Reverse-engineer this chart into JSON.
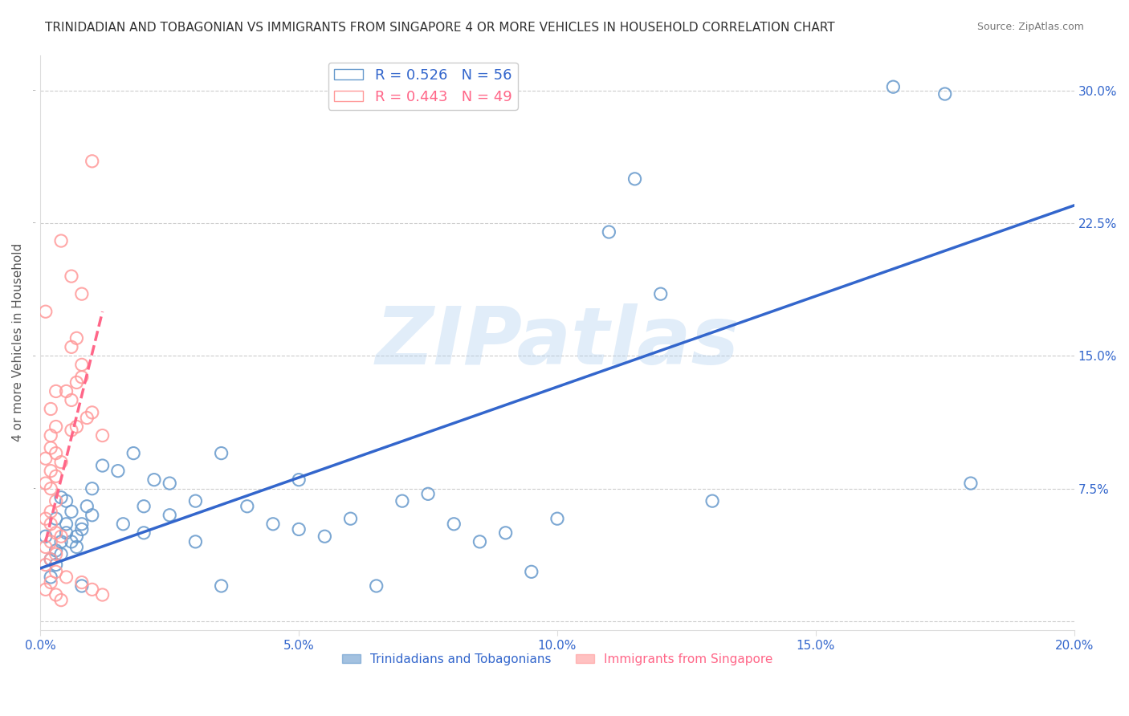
{
  "title": "TRINIDADIAN AND TOBAGONIAN VS IMMIGRANTS FROM SINGAPORE 4 OR MORE VEHICLES IN HOUSEHOLD CORRELATION CHART",
  "source": "Source: ZipAtlas.com",
  "ylabel": "4 or more Vehicles in Household",
  "xlabel": "",
  "xlim": [
    0.0,
    0.2
  ],
  "ylim": [
    -0.005,
    0.32
  ],
  "xticks": [
    0.0,
    0.05,
    0.1,
    0.15,
    0.2
  ],
  "yticks": [
    0.0,
    0.075,
    0.15,
    0.225,
    0.3
  ],
  "ytick_labels": [
    "",
    "7.5%",
    "15.0%",
    "22.5%",
    "30.0%"
  ],
  "xtick_labels": [
    "0.0%",
    "5.0%",
    "10.0%",
    "15.0%",
    "20.0%"
  ],
  "blue_R": 0.526,
  "blue_N": 56,
  "pink_R": 0.443,
  "pink_N": 49,
  "blue_color": "#6699CC",
  "pink_color": "#FF9999",
  "blue_label": "Trinidadians and Tobagonians",
  "pink_label": "Immigrants from Singapore",
  "blue_scatter": [
    [
      0.005,
      0.055
    ],
    [
      0.007,
      0.048
    ],
    [
      0.008,
      0.052
    ],
    [
      0.01,
      0.06
    ],
    [
      0.004,
      0.045
    ],
    [
      0.003,
      0.04
    ],
    [
      0.006,
      0.062
    ],
    [
      0.002,
      0.035
    ],
    [
      0.005,
      0.068
    ],
    [
      0.007,
      0.042
    ],
    [
      0.003,
      0.058
    ],
    [
      0.009,
      0.065
    ],
    [
      0.004,
      0.038
    ],
    [
      0.008,
      0.055
    ],
    [
      0.006,
      0.045
    ],
    [
      0.005,
      0.05
    ],
    [
      0.003,
      0.032
    ],
    [
      0.002,
      0.025
    ],
    [
      0.004,
      0.07
    ],
    [
      0.001,
      0.048
    ],
    [
      0.01,
      0.075
    ],
    [
      0.015,
      0.085
    ],
    [
      0.02,
      0.065
    ],
    [
      0.025,
      0.078
    ],
    [
      0.03,
      0.068
    ],
    [
      0.035,
      0.095
    ],
    [
      0.018,
      0.095
    ],
    [
      0.022,
      0.08
    ],
    [
      0.012,
      0.088
    ],
    [
      0.008,
      0.02
    ],
    [
      0.016,
      0.055
    ],
    [
      0.02,
      0.05
    ],
    [
      0.025,
      0.06
    ],
    [
      0.03,
      0.045
    ],
    [
      0.035,
      0.02
    ],
    [
      0.04,
      0.065
    ],
    [
      0.045,
      0.055
    ],
    [
      0.05,
      0.08
    ],
    [
      0.05,
      0.052
    ],
    [
      0.055,
      0.048
    ],
    [
      0.06,
      0.058
    ],
    [
      0.065,
      0.02
    ],
    [
      0.07,
      0.068
    ],
    [
      0.075,
      0.072
    ],
    [
      0.08,
      0.055
    ],
    [
      0.085,
      0.045
    ],
    [
      0.09,
      0.05
    ],
    [
      0.095,
      0.028
    ],
    [
      0.1,
      0.058
    ],
    [
      0.11,
      0.22
    ],
    [
      0.115,
      0.25
    ],
    [
      0.12,
      0.185
    ],
    [
      0.13,
      0.068
    ],
    [
      0.18,
      0.078
    ],
    [
      0.165,
      0.302
    ],
    [
      0.175,
      0.298
    ]
  ],
  "pink_scatter": [
    [
      0.001,
      0.175
    ],
    [
      0.002,
      0.12
    ],
    [
      0.003,
      0.13
    ],
    [
      0.002,
      0.105
    ],
    [
      0.003,
      0.11
    ],
    [
      0.002,
      0.098
    ],
    [
      0.001,
      0.092
    ],
    [
      0.002,
      0.085
    ],
    [
      0.003,
      0.095
    ],
    [
      0.001,
      0.078
    ],
    [
      0.002,
      0.075
    ],
    [
      0.003,
      0.082
    ],
    [
      0.004,
      0.09
    ],
    [
      0.003,
      0.068
    ],
    [
      0.002,
      0.062
    ],
    [
      0.001,
      0.058
    ],
    [
      0.002,
      0.055
    ],
    [
      0.003,
      0.05
    ],
    [
      0.004,
      0.048
    ],
    [
      0.002,
      0.045
    ],
    [
      0.001,
      0.042
    ],
    [
      0.003,
      0.038
    ],
    [
      0.002,
      0.035
    ],
    [
      0.001,
      0.032
    ],
    [
      0.003,
      0.028
    ],
    [
      0.005,
      0.025
    ],
    [
      0.002,
      0.022
    ],
    [
      0.001,
      0.018
    ],
    [
      0.003,
      0.015
    ],
    [
      0.004,
      0.012
    ],
    [
      0.005,
      0.13
    ],
    [
      0.006,
      0.125
    ],
    [
      0.007,
      0.135
    ],
    [
      0.007,
      0.11
    ],
    [
      0.006,
      0.108
    ],
    [
      0.008,
      0.138
    ],
    [
      0.006,
      0.155
    ],
    [
      0.008,
      0.145
    ],
    [
      0.007,
      0.16
    ],
    [
      0.009,
      0.115
    ],
    [
      0.01,
      0.118
    ],
    [
      0.012,
      0.105
    ],
    [
      0.008,
      0.022
    ],
    [
      0.01,
      0.018
    ],
    [
      0.012,
      0.015
    ],
    [
      0.01,
      0.26
    ],
    [
      0.004,
      0.215
    ],
    [
      0.006,
      0.195
    ],
    [
      0.008,
      0.185
    ]
  ],
  "blue_line_x": [
    0.0,
    0.2
  ],
  "blue_line_y": [
    0.03,
    0.235
  ],
  "pink_line_x": [
    0.001,
    0.012
  ],
  "pink_line_y": [
    0.045,
    0.175
  ],
  "watermark": "ZIPatlas",
  "background_color": "#FFFFFF",
  "grid_color": "#CCCCCC",
  "title_fontsize": 11,
  "axis_label_fontsize": 11,
  "tick_fontsize": 11,
  "legend_fontsize": 13
}
